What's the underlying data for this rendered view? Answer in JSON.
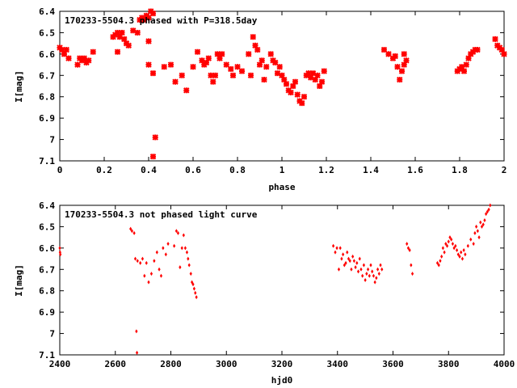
{
  "colors": {
    "points": "#ff0000",
    "axes": "#000000",
    "background": "#ffffff"
  },
  "chart_data": [
    {
      "type": "scatter",
      "title": "170233-5504.3 phased with P=318.5day",
      "xlabel": "phase",
      "ylabel": "I[mag]",
      "xlim": [
        0,
        2
      ],
      "ylim": [
        7.1,
        6.4
      ],
      "y_inverted": true,
      "grid": false,
      "marker": "cross",
      "x_ticks": [
        0,
        0.2,
        0.4,
        0.6,
        0.8,
        1,
        1.2,
        1.4,
        1.6,
        1.8,
        2
      ],
      "y_ticks": [
        6.4,
        6.5,
        6.6,
        6.7,
        6.8,
        6.9,
        7,
        7.1
      ],
      "x_tick_labels": [
        "0",
        "0.2",
        "0.4",
        "0.6",
        "0.8",
        "1",
        "1.2",
        "1.4",
        "1.6",
        "1.8",
        "2"
      ],
      "y_tick_labels": [
        "6.4",
        "6.5",
        "6.6",
        "6.7",
        "6.8",
        "6.9",
        "7",
        "7.1"
      ],
      "points": [
        [
          0.0,
          6.57
        ],
        [
          0.01,
          6.58
        ],
        [
          0.02,
          6.6
        ],
        [
          0.03,
          6.58
        ],
        [
          0.04,
          6.62
        ],
        [
          0.08,
          6.65
        ],
        [
          0.09,
          6.62
        ],
        [
          0.1,
          6.63
        ],
        [
          0.11,
          6.62
        ],
        [
          0.12,
          6.64
        ],
        [
          0.13,
          6.63
        ],
        [
          0.15,
          6.59
        ],
        [
          0.24,
          6.52
        ],
        [
          0.25,
          6.51
        ],
        [
          0.26,
          6.5
        ],
        [
          0.27,
          6.52
        ],
        [
          0.28,
          6.5
        ],
        [
          0.29,
          6.53
        ],
        [
          0.26,
          6.59
        ],
        [
          0.3,
          6.55
        ],
        [
          0.31,
          6.56
        ],
        [
          0.33,
          6.49
        ],
        [
          0.35,
          6.5
        ],
        [
          0.36,
          6.44
        ],
        [
          0.37,
          6.43
        ],
        [
          0.38,
          6.44
        ],
        [
          0.39,
          6.42
        ],
        [
          0.4,
          6.43
        ],
        [
          0.41,
          6.4
        ],
        [
          0.42,
          6.41
        ],
        [
          0.4,
          6.54
        ],
        [
          0.4,
          6.65
        ],
        [
          0.42,
          6.69
        ],
        [
          0.43,
          6.99
        ],
        [
          0.42,
          7.08
        ],
        [
          0.47,
          6.66
        ],
        [
          0.5,
          6.65
        ],
        [
          0.52,
          6.73
        ],
        [
          0.55,
          6.7
        ],
        [
          0.57,
          6.77
        ],
        [
          0.6,
          6.66
        ],
        [
          0.62,
          6.59
        ],
        [
          0.64,
          6.63
        ],
        [
          0.65,
          6.65
        ],
        [
          0.66,
          6.64
        ],
        [
          0.67,
          6.62
        ],
        [
          0.68,
          6.7
        ],
        [
          0.69,
          6.73
        ],
        [
          0.7,
          6.7
        ],
        [
          0.71,
          6.6
        ],
        [
          0.72,
          6.62
        ],
        [
          0.73,
          6.6
        ],
        [
          0.75,
          6.65
        ],
        [
          0.77,
          6.67
        ],
        [
          0.78,
          6.7
        ],
        [
          0.8,
          6.66
        ],
        [
          0.82,
          6.68
        ],
        [
          0.85,
          6.6
        ],
        [
          0.86,
          6.7
        ],
        [
          0.87,
          6.52
        ],
        [
          0.88,
          6.56
        ],
        [
          0.89,
          6.58
        ],
        [
          0.9,
          6.65
        ],
        [
          0.91,
          6.63
        ],
        [
          0.92,
          6.72
        ],
        [
          0.93,
          6.66
        ],
        [
          0.95,
          6.6
        ],
        [
          0.96,
          6.63
        ],
        [
          0.97,
          6.64
        ],
        [
          0.98,
          6.69
        ],
        [
          0.99,
          6.66
        ],
        [
          1.0,
          6.7
        ],
        [
          1.01,
          6.72
        ],
        [
          1.02,
          6.74
        ],
        [
          1.03,
          6.77
        ],
        [
          1.04,
          6.78
        ],
        [
          1.05,
          6.75
        ],
        [
          1.06,
          6.73
        ],
        [
          1.07,
          6.79
        ],
        [
          1.08,
          6.82
        ],
        [
          1.09,
          6.83
        ],
        [
          1.1,
          6.8
        ],
        [
          1.11,
          6.7
        ],
        [
          1.12,
          6.69
        ],
        [
          1.13,
          6.71
        ],
        [
          1.14,
          6.69
        ],
        [
          1.15,
          6.72
        ],
        [
          1.16,
          6.7
        ],
        [
          1.17,
          6.75
        ],
        [
          1.18,
          6.73
        ],
        [
          1.19,
          6.68
        ],
        [
          1.46,
          6.58
        ],
        [
          1.48,
          6.6
        ],
        [
          1.5,
          6.62
        ],
        [
          1.51,
          6.61
        ],
        [
          1.52,
          6.66
        ],
        [
          1.53,
          6.72
        ],
        [
          1.54,
          6.68
        ],
        [
          1.55,
          6.6
        ],
        [
          1.56,
          6.63
        ],
        [
          1.55,
          6.65
        ],
        [
          1.79,
          6.68
        ],
        [
          1.8,
          6.67
        ],
        [
          1.81,
          6.66
        ],
        [
          1.82,
          6.68
        ],
        [
          1.83,
          6.65
        ],
        [
          1.84,
          6.62
        ],
        [
          1.85,
          6.6
        ],
        [
          1.86,
          6.59
        ],
        [
          1.87,
          6.58
        ],
        [
          1.88,
          6.58
        ],
        [
          1.96,
          6.53
        ],
        [
          1.97,
          6.56
        ],
        [
          1.98,
          6.57
        ],
        [
          1.99,
          6.58
        ],
        [
          2.0,
          6.6
        ]
      ]
    },
    {
      "type": "scatter",
      "title": "170233-5504.3 not phased light curve",
      "xlabel": "hjd0",
      "ylabel": "I[mag]",
      "xlim": [
        2400,
        4000
      ],
      "ylim": [
        7.1,
        6.4
      ],
      "y_inverted": true,
      "grid": false,
      "marker": "diamond",
      "x_ticks": [
        2400,
        2600,
        2800,
        3000,
        3200,
        3400,
        3600,
        3800,
        4000
      ],
      "y_ticks": [
        6.4,
        6.5,
        6.6,
        6.7,
        6.8,
        6.9,
        7,
        7.1
      ],
      "x_tick_labels": [
        "2400",
        "2600",
        "2800",
        "3000",
        "3200",
        "3400",
        "3600",
        "3800",
        "4000"
      ],
      "y_tick_labels": [
        "6.4",
        "6.5",
        "6.6",
        "6.7",
        "6.8",
        "6.9",
        "7",
        "7.1"
      ],
      "points": [
        [
          2400,
          6.6
        ],
        [
          2401,
          6.62
        ],
        [
          2402,
          6.63
        ],
        [
          2655,
          6.51
        ],
        [
          2660,
          6.52
        ],
        [
          2668,
          6.53
        ],
        [
          2672,
          6.65
        ],
        [
          2676,
          6.99
        ],
        [
          2678,
          7.09
        ],
        [
          2680,
          6.66
        ],
        [
          2690,
          6.67
        ],
        [
          2698,
          6.65
        ],
        [
          2705,
          6.73
        ],
        [
          2712,
          6.67
        ],
        [
          2720,
          6.76
        ],
        [
          2730,
          6.72
        ],
        [
          2740,
          6.66
        ],
        [
          2750,
          6.62
        ],
        [
          2758,
          6.7
        ],
        [
          2765,
          6.73
        ],
        [
          2772,
          6.6
        ],
        [
          2782,
          6.63
        ],
        [
          2790,
          6.58
        ],
        [
          2812,
          6.59
        ],
        [
          2820,
          6.52
        ],
        [
          2826,
          6.53
        ],
        [
          2833,
          6.69
        ],
        [
          2840,
          6.6
        ],
        [
          2846,
          6.54
        ],
        [
          2852,
          6.6
        ],
        [
          2858,
          6.62
        ],
        [
          2862,
          6.65
        ],
        [
          2866,
          6.68
        ],
        [
          2872,
          6.72
        ],
        [
          2876,
          6.76
        ],
        [
          2880,
          6.77
        ],
        [
          2884,
          6.79
        ],
        [
          2888,
          6.81
        ],
        [
          2892,
          6.83
        ],
        [
          3385,
          6.59
        ],
        [
          3392,
          6.62
        ],
        [
          3398,
          6.6
        ],
        [
          3405,
          6.7
        ],
        [
          3410,
          6.6
        ],
        [
          3415,
          6.65
        ],
        [
          3420,
          6.63
        ],
        [
          3425,
          6.68
        ],
        [
          3430,
          6.67
        ],
        [
          3435,
          6.62
        ],
        [
          3440,
          6.65
        ],
        [
          3445,
          6.66
        ],
        [
          3450,
          6.7
        ],
        [
          3455,
          6.64
        ],
        [
          3460,
          6.66
        ],
        [
          3465,
          6.69
        ],
        [
          3470,
          6.67
        ],
        [
          3475,
          6.71
        ],
        [
          3480,
          6.65
        ],
        [
          3485,
          6.7
        ],
        [
          3490,
          6.73
        ],
        [
          3495,
          6.68
        ],
        [
          3500,
          6.75
        ],
        [
          3505,
          6.72
        ],
        [
          3510,
          6.7
        ],
        [
          3515,
          6.73
        ],
        [
          3520,
          6.68
        ],
        [
          3525,
          6.71
        ],
        [
          3530,
          6.73
        ],
        [
          3535,
          6.76
        ],
        [
          3540,
          6.74
        ],
        [
          3545,
          6.7
        ],
        [
          3550,
          6.72
        ],
        [
          3555,
          6.68
        ],
        [
          3560,
          6.7
        ],
        [
          3650,
          6.58
        ],
        [
          3655,
          6.6
        ],
        [
          3660,
          6.61
        ],
        [
          3665,
          6.68
        ],
        [
          3670,
          6.72
        ],
        [
          3760,
          6.67
        ],
        [
          3765,
          6.68
        ],
        [
          3770,
          6.66
        ],
        [
          3775,
          6.64
        ],
        [
          3780,
          6.6
        ],
        [
          3785,
          6.62
        ],
        [
          3790,
          6.58
        ],
        [
          3795,
          6.59
        ],
        [
          3800,
          6.57
        ],
        [
          3805,
          6.55
        ],
        [
          3810,
          6.56
        ],
        [
          3815,
          6.58
        ],
        [
          3820,
          6.6
        ],
        [
          3825,
          6.59
        ],
        [
          3830,
          6.61
        ],
        [
          3835,
          6.63
        ],
        [
          3840,
          6.64
        ],
        [
          3845,
          6.62
        ],
        [
          3850,
          6.65
        ],
        [
          3855,
          6.61
        ],
        [
          3860,
          6.63
        ],
        [
          3870,
          6.59
        ],
        [
          3880,
          6.56
        ],
        [
          3890,
          6.58
        ],
        [
          3895,
          6.53
        ],
        [
          3900,
          6.5
        ],
        [
          3905,
          6.52
        ],
        [
          3910,
          6.55
        ],
        [
          3915,
          6.48
        ],
        [
          3920,
          6.5
        ],
        [
          3925,
          6.49
        ],
        [
          3930,
          6.47
        ],
        [
          3935,
          6.44
        ],
        [
          3940,
          6.43
        ],
        [
          3945,
          6.42
        ],
        [
          3950,
          6.4
        ]
      ]
    }
  ]
}
